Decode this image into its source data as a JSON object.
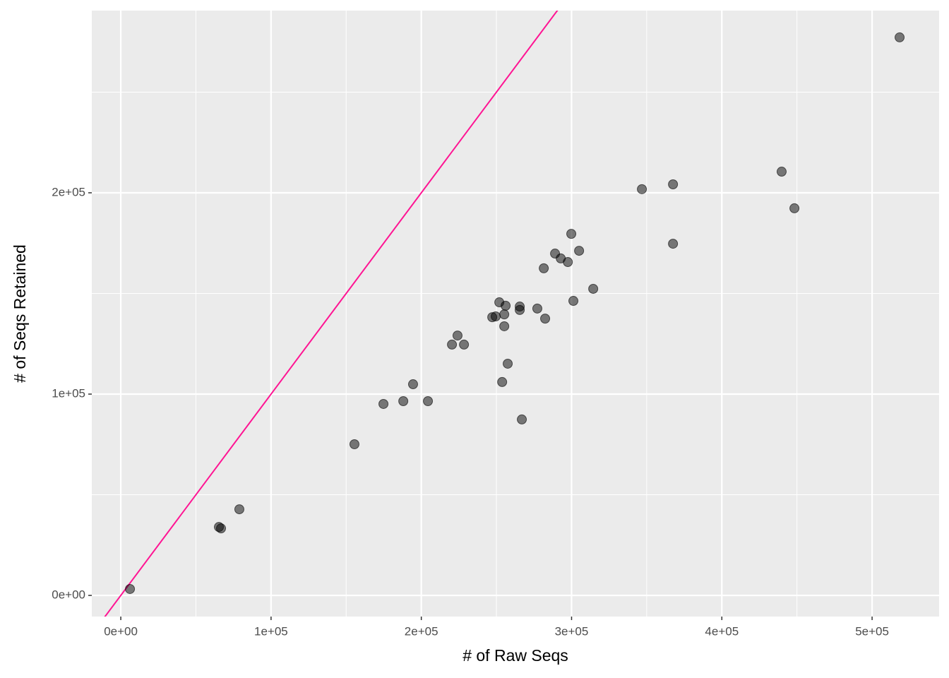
{
  "chart_data": {
    "type": "scatter",
    "x_label": "# of Raw Seqs",
    "y_label": "# of Seqs Retained",
    "x": [
      6100,
      65300,
      66700,
      78900,
      155500,
      174800,
      188000,
      194500,
      204400,
      220400,
      224100,
      228400,
      247200,
      249500,
      251900,
      255200,
      256100,
      255200,
      257500,
      253800,
      265500,
      265500,
      266900,
      277200,
      282400,
      281500,
      289000,
      292800,
      297500,
      299800,
      305000,
      301200,
      314400,
      346800,
      367500,
      367500,
      439800,
      448300,
      518300
    ],
    "y": [
      3200,
      34000,
      33300,
      42800,
      75100,
      95100,
      96500,
      104900,
      96500,
      124600,
      129100,
      124600,
      138200,
      138600,
      145600,
      139600,
      143900,
      133700,
      115100,
      106000,
      143500,
      141800,
      87400,
      142500,
      137500,
      162500,
      169800,
      167400,
      165600,
      179600,
      171200,
      146300,
      152300,
      201800,
      204200,
      174700,
      210500,
      192300,
      277200
    ],
    "color": "#000000",
    "reference_line": {
      "slope": 1,
      "intercept": 0,
      "color": "#ff1493"
    },
    "xlim": [
      -19300,
      544600
    ],
    "ylim": [
      -10500,
      290500
    ],
    "xticks": [
      {
        "value": 0,
        "label": "0e+00"
      },
      {
        "value": 100000,
        "label": "1e+05"
      },
      {
        "value": 200000,
        "label": "2e+05"
      },
      {
        "value": 300000,
        "label": "3e+05"
      },
      {
        "value": 400000,
        "label": "4e+05"
      },
      {
        "value": 500000,
        "label": "5e+05"
      }
    ],
    "yticks": [
      {
        "value": 0,
        "label": "0e+00"
      },
      {
        "value": 100000,
        "label": "1e+05"
      },
      {
        "value": 200000,
        "label": "2e+05"
      }
    ],
    "xminorgrid": [
      50000,
      150000,
      250000,
      350000,
      450000
    ],
    "yminorgrid": [
      50000,
      150000,
      250000
    ],
    "grid": true
  }
}
